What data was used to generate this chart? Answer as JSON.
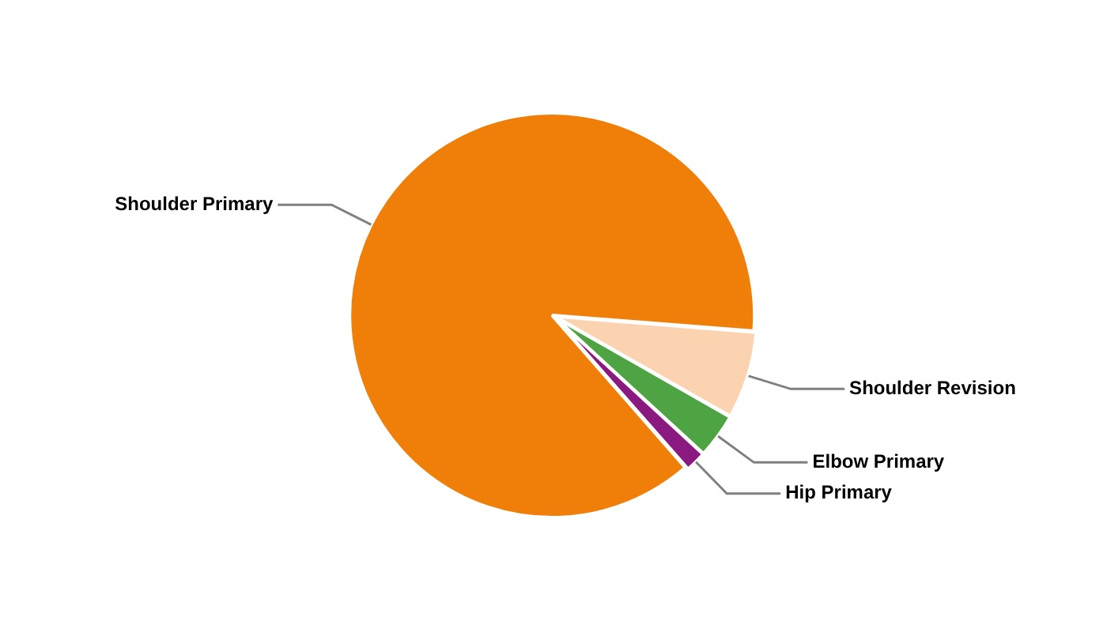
{
  "chart_data": {
    "type": "pie",
    "categories": [
      "Shoulder Revision",
      "Elbow Primary",
      "Hip Primary",
      "Shoulder Primary"
    ],
    "values": [
      7,
      3.6,
      1.7,
      87.7
    ],
    "colors": [
      "#fcd3b0",
      "#4ea342",
      "#8a1a7f",
      "#f07f09"
    ],
    "legend": false
  }
}
